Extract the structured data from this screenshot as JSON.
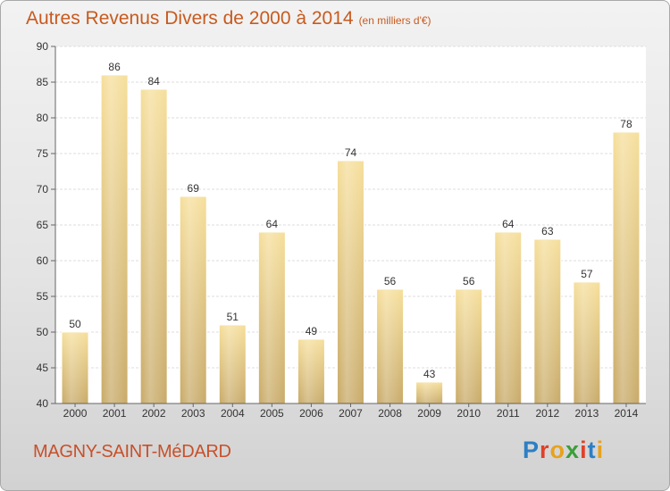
{
  "chart_data": {
    "type": "bar",
    "title": "Autres Revenus Divers de 2000 à 2014",
    "subtitle": "(en milliers d'€)",
    "categories": [
      "2000",
      "2001",
      "2002",
      "2003",
      "2004",
      "2005",
      "2006",
      "2007",
      "2008",
      "2009",
      "2010",
      "2011",
      "2012",
      "2013",
      "2014"
    ],
    "values": [
      50,
      86,
      84,
      69,
      51,
      64,
      49,
      74,
      56,
      43,
      56,
      64,
      63,
      57,
      78
    ],
    "ylim": [
      40,
      90
    ],
    "yticks": [
      40,
      45,
      50,
      55,
      60,
      65,
      70,
      75,
      80,
      85,
      90
    ],
    "grid": true,
    "bar_color": "#ecd290"
  },
  "town": "MAGNY-SAINT-MéDARD",
  "logo": {
    "text": "Proxiti",
    "letter_colors": [
      "#2d7fc4",
      "#e0402a",
      "#e8a21c",
      "#3b9e3a",
      "#e0402a",
      "#2d7fc4",
      "#e8a21c"
    ]
  }
}
